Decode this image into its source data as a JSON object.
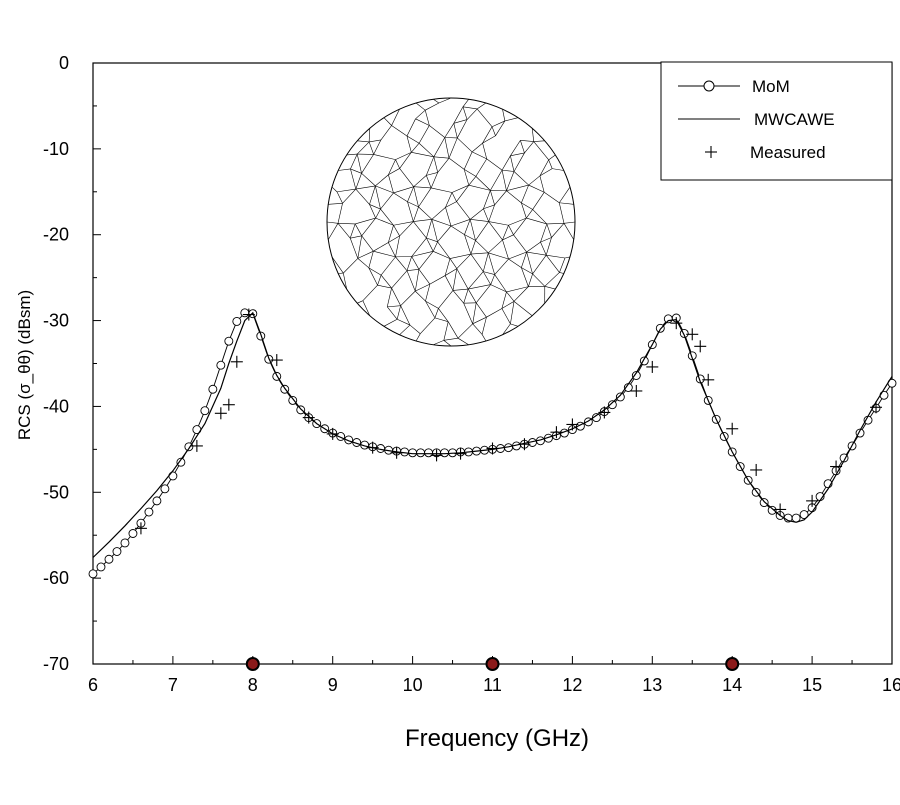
{
  "chart_data": {
    "type": "line",
    "xlabel": "Frequency (GHz)",
    "ylabel": "RCS (σ_θθ) (dBsm)",
    "xlim": [
      6,
      16
    ],
    "ylim": [
      -70,
      0
    ],
    "x_ticks": [
      "6",
      "7",
      "8",
      "9",
      "10",
      "11",
      "12",
      "13",
      "14",
      "15",
      "16"
    ],
    "y_ticks": [
      "0",
      "-10",
      "-20",
      "-30",
      "-40",
      "-50",
      "-60",
      "-70"
    ],
    "grid": false,
    "legend_position": "top-right",
    "inset": "triangular surface mesh of a circular disk",
    "series": [
      {
        "name": "MoM",
        "style": "line-circles",
        "x": [
          6.0,
          6.1,
          6.2,
          6.3,
          6.4,
          6.5,
          6.6,
          6.7,
          6.8,
          6.9,
          7.0,
          7.1,
          7.2,
          7.3,
          7.4,
          7.5,
          7.6,
          7.7,
          7.8,
          7.9,
          8.0,
          8.1,
          8.2,
          8.3,
          8.4,
          8.5,
          8.6,
          8.7,
          8.8,
          8.9,
          9.0,
          9.1,
          9.2,
          9.3,
          9.4,
          9.5,
          9.6,
          9.7,
          9.8,
          9.9,
          10.0,
          10.1,
          10.2,
          10.3,
          10.4,
          10.5,
          10.6,
          10.7,
          10.8,
          10.9,
          11.0,
          11.1,
          11.2,
          11.3,
          11.4,
          11.5,
          11.6,
          11.7,
          11.8,
          11.9,
          12.0,
          12.1,
          12.2,
          12.3,
          12.4,
          12.5,
          12.6,
          12.7,
          12.8,
          12.9,
          13.0,
          13.1,
          13.2,
          13.3,
          13.4,
          13.5,
          13.6,
          13.7,
          13.8,
          13.9,
          14.0,
          14.1,
          14.2,
          14.3,
          14.4,
          14.5,
          14.6,
          14.7,
          14.8,
          14.9,
          15.0,
          15.1,
          15.2,
          15.3,
          15.4,
          15.5,
          15.6,
          15.7,
          15.8,
          15.9,
          16.0
        ],
        "y": [
          -59.5,
          -58.7,
          -57.8,
          -56.9,
          -55.9,
          -54.8,
          -53.6,
          -52.3,
          -51.0,
          -49.6,
          -48.1,
          -46.5,
          -44.7,
          -42.7,
          -40.5,
          -38.0,
          -35.2,
          -32.4,
          -30.1,
          -29.1,
          -29.2,
          -31.8,
          -34.5,
          -36.5,
          -38.0,
          -39.3,
          -40.4,
          -41.3,
          -42.0,
          -42.6,
          -43.1,
          -43.5,
          -43.9,
          -44.2,
          -44.5,
          -44.7,
          -44.9,
          -45.1,
          -45.2,
          -45.3,
          -45.4,
          -45.4,
          -45.4,
          -45.4,
          -45.4,
          -45.4,
          -45.3,
          -45.3,
          -45.2,
          -45.1,
          -45.0,
          -44.9,
          -44.8,
          -44.6,
          -44.4,
          -44.2,
          -44.0,
          -43.7,
          -43.4,
          -43.1,
          -42.7,
          -42.3,
          -41.8,
          -41.3,
          -40.6,
          -39.8,
          -38.9,
          -37.8,
          -36.4,
          -34.7,
          -32.8,
          -30.9,
          -29.8,
          -29.7,
          -31.5,
          -34.1,
          -36.8,
          -39.3,
          -41.5,
          -43.5,
          -45.3,
          -47.0,
          -48.6,
          -50.0,
          -51.2,
          -52.1,
          -52.7,
          -53.0,
          -53.0,
          -52.6,
          -51.8,
          -50.5,
          -49.0,
          -47.5,
          -46.0,
          -44.6,
          -43.1,
          -41.6,
          -40.2,
          -38.7,
          -37.3
        ]
      },
      {
        "name": "MWCAWE",
        "style": "line",
        "x": [
          6.0,
          6.2,
          6.4,
          6.6,
          6.8,
          7.0,
          7.2,
          7.4,
          7.6,
          7.7,
          7.8,
          7.9,
          8.0,
          8.1,
          8.2,
          8.3,
          8.4,
          8.6,
          8.8,
          9.0,
          9.2,
          9.4,
          9.6,
          9.8,
          10.0,
          10.2,
          10.4,
          10.6,
          10.8,
          11.0,
          11.2,
          11.4,
          11.6,
          11.8,
          12.0,
          12.2,
          12.4,
          12.6,
          12.8,
          13.0,
          13.1,
          13.2,
          13.3,
          13.4,
          13.5,
          13.6,
          13.8,
          14.0,
          14.2,
          14.4,
          14.6,
          14.7,
          14.8,
          14.9,
          15.0,
          15.2,
          15.4,
          15.6,
          15.8,
          16.0
        ],
        "y": [
          -57.6,
          -55.8,
          -53.9,
          -51.9,
          -49.8,
          -47.5,
          -44.9,
          -42.0,
          -37.9,
          -35.0,
          -32.4,
          -30.0,
          -29.1,
          -31.6,
          -34.4,
          -36.4,
          -37.9,
          -40.3,
          -42.0,
          -43.2,
          -44.0,
          -44.6,
          -45.0,
          -45.3,
          -45.5,
          -45.5,
          -45.5,
          -45.4,
          -45.2,
          -45.0,
          -44.7,
          -44.3,
          -43.9,
          -43.3,
          -42.6,
          -41.7,
          -40.4,
          -38.7,
          -36.1,
          -32.8,
          -31.0,
          -30.0,
          -29.9,
          -31.7,
          -34.4,
          -37.1,
          -41.5,
          -45.3,
          -48.6,
          -51.1,
          -52.7,
          -53.3,
          -53.5,
          -53.2,
          -52.3,
          -49.6,
          -46.3,
          -42.8,
          -39.5,
          -36.5
        ]
      },
      {
        "name": "Measured",
        "style": "plus-markers",
        "x": [
          6.6,
          7.3,
          7.6,
          7.7,
          7.8,
          7.95,
          8.3,
          8.7,
          9.0,
          9.5,
          9.8,
          10.3,
          10.6,
          11.0,
          11.4,
          11.8,
          12.0,
          12.4,
          12.8,
          13.0,
          13.3,
          13.5,
          13.6,
          13.7,
          14.0,
          14.3,
          14.6,
          15.0,
          15.3,
          15.8
        ],
        "y": [
          -54.2,
          -44.6,
          -40.8,
          -39.8,
          -34.8,
          -29.3,
          -34.6,
          -41.3,
          -43.2,
          -44.8,
          -45.4,
          -45.7,
          -45.5,
          -44.9,
          -44.4,
          -43.0,
          -42.1,
          -40.7,
          -38.2,
          -35.4,
          -30.3,
          -31.6,
          -33.0,
          -36.9,
          -42.6,
          -47.4,
          -52.0,
          -51.0,
          -47.0,
          -40.1
        ]
      }
    ],
    "markers_on_axis": [
      {
        "x": 8,
        "y": -70,
        "color": "#8b1a1a"
      },
      {
        "x": 11,
        "y": -70,
        "color": "#8b1a1a"
      },
      {
        "x": 14,
        "y": -70,
        "color": "#8b1a1a"
      }
    ]
  },
  "legend": {
    "items": [
      {
        "label": "MoM",
        "style": "line-circles"
      },
      {
        "label": "MWCAWE",
        "style": "line"
      },
      {
        "label": "Measured",
        "style": "plus-markers"
      }
    ]
  }
}
